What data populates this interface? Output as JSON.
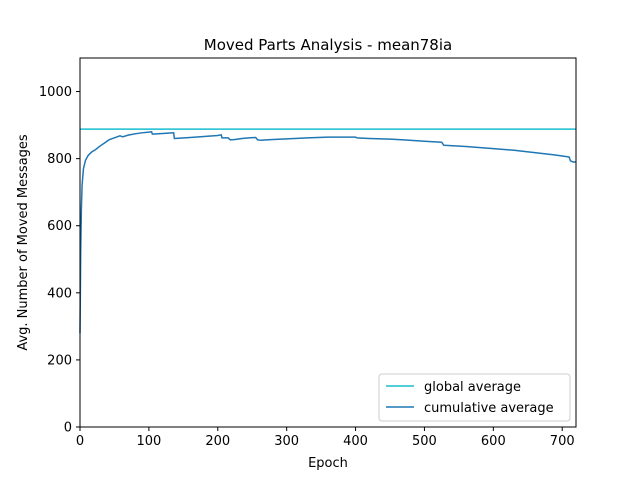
{
  "chart_data": {
    "type": "line",
    "title": "Moved Parts Analysis - mean78ia",
    "xlabel": "Epoch",
    "ylabel": "Avg. Number of Moved Messages",
    "xlim": [
      0,
      720
    ],
    "ylim": [
      0,
      1100
    ],
    "xticks": [
      0,
      100,
      200,
      300,
      400,
      500,
      600,
      700
    ],
    "yticks": [
      0,
      200,
      400,
      600,
      800,
      1000
    ],
    "grid": false,
    "legend_position": "lower-right",
    "series": [
      {
        "name": "global average",
        "color": "#17becf",
        "kind": "hline",
        "y": 888
      },
      {
        "name": "cumulative average",
        "color": "#1f77b4",
        "x": [
          0,
          1,
          2,
          3,
          5,
          8,
          12,
          17,
          22,
          28,
          35,
          42,
          50,
          58,
          62,
          70,
          80,
          90,
          100,
          104,
          105,
          120,
          136,
          137,
          160,
          180,
          200,
          205,
          206,
          215,
          218,
          225,
          235,
          245,
          255,
          258,
          262,
          280,
          300,
          330,
          360,
          400,
          402,
          420,
          450,
          470,
          500,
          525,
          528,
          560,
          600,
          630,
          660,
          690,
          710,
          712,
          716,
          720
        ],
        "y": [
          280,
          520,
          650,
          720,
          770,
          795,
          810,
          820,
          826,
          836,
          846,
          856,
          862,
          868,
          865,
          870,
          874,
          877,
          879,
          880,
          873,
          875,
          877,
          860,
          863,
          866,
          869,
          871,
          862,
          862,
          856,
          857,
          860,
          862,
          863,
          856,
          855,
          857,
          859,
          862,
          864,
          864,
          862,
          860,
          858,
          856,
          852,
          849,
          840,
          836,
          830,
          825,
          818,
          811,
          805,
          793,
          790,
          790
        ]
      }
    ]
  }
}
